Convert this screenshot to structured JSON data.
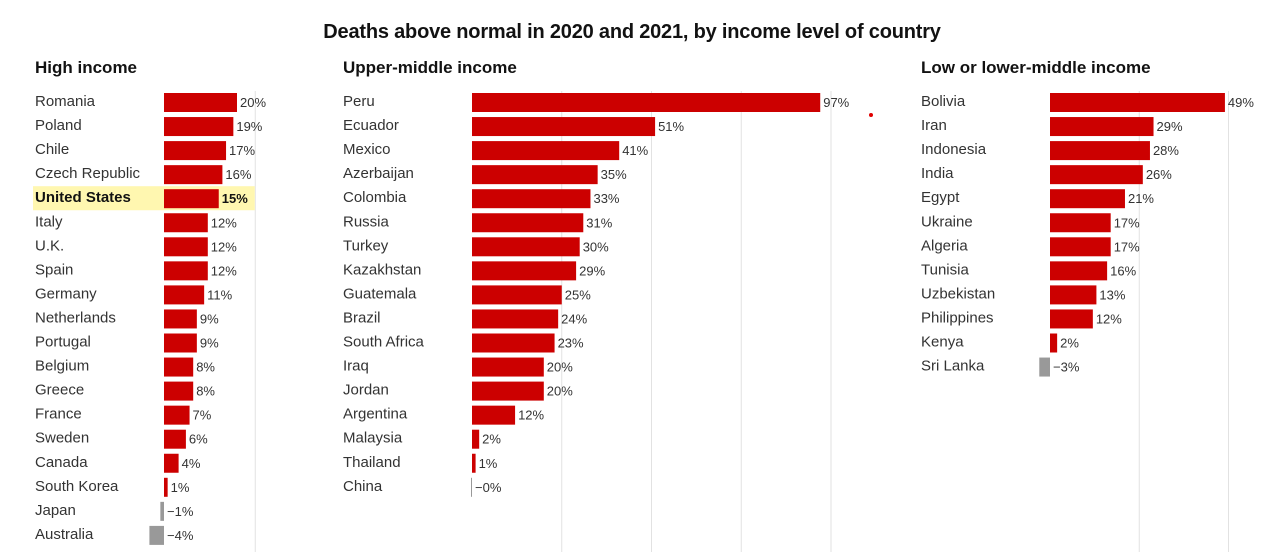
{
  "title": "Deaths above normal in 2020 and 2021, by income level of country",
  "colors": {
    "positive": "#cc0000",
    "negative": "#999999",
    "highlight": "#fff7b0",
    "grid": "#e2e2e2"
  },
  "highlight_country": "United States",
  "chart_data": [
    {
      "type": "bar",
      "title": "High income",
      "orientation": "horizontal",
      "grid": true,
      "categories": [
        "Romania",
        "Poland",
        "Chile",
        "Czech Republic",
        "United States",
        "Italy",
        "U.K.",
        "Spain",
        "Germany",
        "Netherlands",
        "Portugal",
        "Belgium",
        "Greece",
        "France",
        "Sweden",
        "Canada",
        "South Korea",
        "Japan",
        "Australia"
      ],
      "values": [
        20,
        19,
        17,
        16,
        15,
        12,
        12,
        12,
        11,
        9,
        9,
        8,
        8,
        7,
        6,
        4,
        1,
        -1,
        -4
      ],
      "value_labels": [
        "20%",
        "19%",
        "17%",
        "16%",
        "15%",
        "12%",
        "12%",
        "12%",
        "11%",
        "9%",
        "9%",
        "8%",
        "8%",
        "7%",
        "6%",
        "4%",
        "1%",
        "−1%",
        "−4%"
      ]
    },
    {
      "type": "bar",
      "title": "Upper-middle income",
      "orientation": "horizontal",
      "grid": true,
      "categories": [
        "Peru",
        "Ecuador",
        "Mexico",
        "Azerbaijan",
        "Colombia",
        "Russia",
        "Turkey",
        "Kazakhstan",
        "Guatemala",
        "Brazil",
        "South Africa",
        "Iraq",
        "Jordan",
        "Argentina",
        "Malaysia",
        "Thailand",
        "China"
      ],
      "values": [
        97,
        51,
        41,
        35,
        33,
        31,
        30,
        29,
        25,
        24,
        23,
        20,
        20,
        12,
        2,
        1,
        0
      ],
      "value_labels": [
        "97%",
        "51%",
        "41%",
        "35%",
        "33%",
        "31%",
        "30%",
        "29%",
        "25%",
        "24%",
        "23%",
        "20%",
        "20%",
        "12%",
        "2%",
        "1%",
        "−0%"
      ]
    },
    {
      "type": "bar",
      "title": "Low or lower-middle income",
      "orientation": "horizontal",
      "grid": true,
      "categories": [
        "Bolivia",
        "Iran",
        "Indonesia",
        "India",
        "Egypt",
        "Ukraine",
        "Algeria",
        "Tunisia",
        "Uzbekistan",
        "Philippines",
        "Kenya",
        "Sri Lanka"
      ],
      "values": [
        49,
        29,
        28,
        26,
        21,
        17,
        17,
        16,
        13,
        12,
        2,
        -3
      ],
      "value_labels": [
        "49%",
        "29%",
        "28%",
        "26%",
        "21%",
        "17%",
        "17%",
        "16%",
        "13%",
        "12%",
        "2%",
        "−3%"
      ]
    }
  ]
}
